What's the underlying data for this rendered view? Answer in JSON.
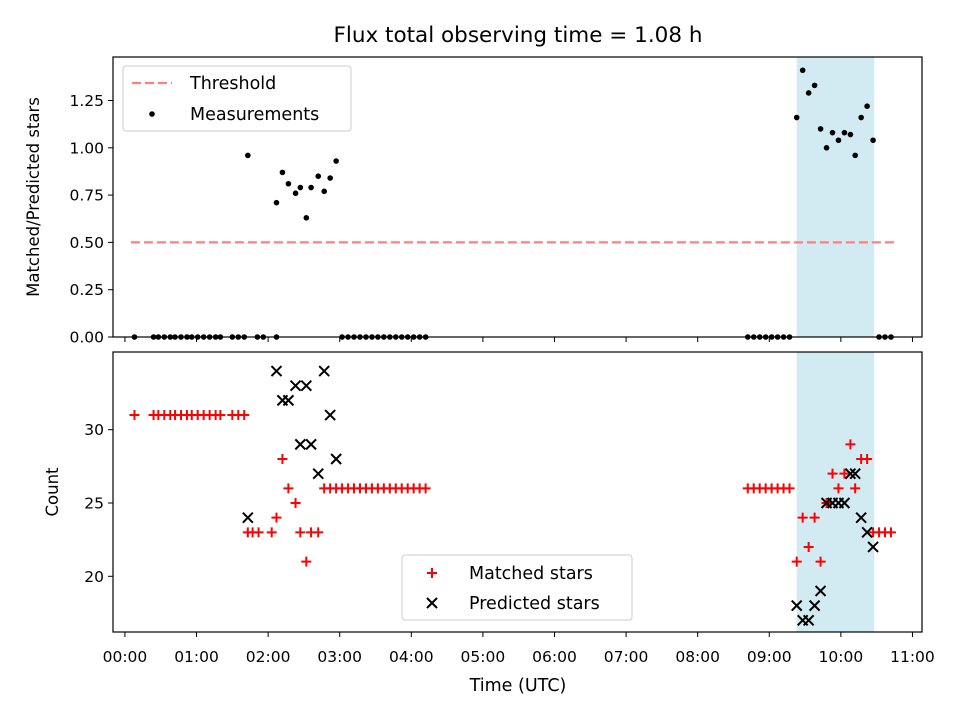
{
  "figure": {
    "title": "Flux total observing time = 1.08 h",
    "xlabel": "Time (UTC)",
    "highlight_span": [
      "09:23",
      "10:28"
    ],
    "highlight_color": "#add8e6"
  },
  "chart_data": [
    {
      "type": "scatter",
      "panel": "top",
      "ylabel": "Matched/Predicted stars",
      "xlim": [
        "23:50",
        "11:08"
      ],
      "ylim": [
        0,
        1.48
      ],
      "yticks": [
        "0.00",
        "0.25",
        "0.50",
        "0.75",
        "1.00",
        "1.25"
      ],
      "legend_location": "upper-left",
      "series": [
        {
          "name": "Threshold",
          "style": "dashed-line",
          "color": "#ff7f7f",
          "points": [
            [
              "00:05",
              0.5
            ],
            [
              "10:45",
              0.5
            ]
          ]
        },
        {
          "name": "Measurements",
          "style": "dot",
          "color": "#000000",
          "points": [
            [
              "00:08",
              0
            ],
            [
              "00:24",
              0
            ],
            [
              "00:28",
              0
            ],
            [
              "00:33",
              0
            ],
            [
              "00:38",
              0
            ],
            [
              "00:42",
              0
            ],
            [
              "00:47",
              0
            ],
            [
              "00:52",
              0
            ],
            [
              "00:56",
              0
            ],
            [
              "01:01",
              0
            ],
            [
              "01:06",
              0
            ],
            [
              "01:11",
              0
            ],
            [
              "01:16",
              0
            ],
            [
              "01:20",
              0
            ],
            [
              "01:30",
              0
            ],
            [
              "01:35",
              0
            ],
            [
              "01:40",
              0
            ],
            [
              "01:51",
              0
            ],
            [
              "01:56",
              0
            ],
            [
              "02:07",
              0
            ],
            [
              "01:43",
              0.96
            ],
            [
              "02:07",
              0.71
            ],
            [
              "02:12",
              0.87
            ],
            [
              "02:17",
              0.81
            ],
            [
              "02:23",
              0.76
            ],
            [
              "02:27",
              0.79
            ],
            [
              "02:32",
              0.63
            ],
            [
              "02:36",
              0.79
            ],
            [
              "02:42",
              0.85
            ],
            [
              "02:47",
              0.77
            ],
            [
              "02:52",
              0.84
            ],
            [
              "02:57",
              0.93
            ],
            [
              "03:02",
              0
            ],
            [
              "03:07",
              0
            ],
            [
              "03:12",
              0
            ],
            [
              "03:17",
              0
            ],
            [
              "03:22",
              0
            ],
            [
              "03:27",
              0
            ],
            [
              "03:32",
              0
            ],
            [
              "03:37",
              0
            ],
            [
              "03:42",
              0
            ],
            [
              "03:47",
              0
            ],
            [
              "03:52",
              0
            ],
            [
              "03:57",
              0
            ],
            [
              "04:02",
              0
            ],
            [
              "04:07",
              0
            ],
            [
              "04:12",
              0
            ],
            [
              "08:42",
              0
            ],
            [
              "08:47",
              0
            ],
            [
              "08:52",
              0
            ],
            [
              "08:57",
              0
            ],
            [
              "09:02",
              0
            ],
            [
              "09:07",
              0
            ],
            [
              "09:12",
              0
            ],
            [
              "09:17",
              0
            ],
            [
              "09:23",
              1.16
            ],
            [
              "09:28",
              1.41
            ],
            [
              "09:33",
              1.29
            ],
            [
              "09:38",
              1.33
            ],
            [
              "09:43",
              1.1
            ],
            [
              "09:48",
              1.0
            ],
            [
              "09:53",
              1.08
            ],
            [
              "09:58",
              1.04
            ],
            [
              "10:03",
              1.08
            ],
            [
              "10:08",
              1.07
            ],
            [
              "10:12",
              0.96
            ],
            [
              "10:17",
              1.16
            ],
            [
              "10:22",
              1.22
            ],
            [
              "10:27",
              1.04
            ],
            [
              "10:32",
              0
            ],
            [
              "10:37",
              0
            ],
            [
              "10:42",
              0
            ]
          ]
        }
      ]
    },
    {
      "type": "scatter",
      "panel": "bottom",
      "ylabel": "Count",
      "xlim": [
        "23:50",
        "11:08"
      ],
      "ylim": [
        16.2,
        35.3
      ],
      "yticks": [
        "20",
        "25",
        "30"
      ],
      "xticks": [
        "00:00",
        "01:00",
        "02:00",
        "03:00",
        "04:00",
        "05:00",
        "06:00",
        "07:00",
        "08:00",
        "09:00",
        "10:00",
        "11:00"
      ],
      "legend_location": "lower-center",
      "series": [
        {
          "name": "Matched stars",
          "marker": "+",
          "color": "#ff0000",
          "points": [
            [
              "00:08",
              31
            ],
            [
              "00:24",
              31
            ],
            [
              "00:28",
              31
            ],
            [
              "00:33",
              31
            ],
            [
              "00:38",
              31
            ],
            [
              "00:42",
              31
            ],
            [
              "00:47",
              31
            ],
            [
              "00:52",
              31
            ],
            [
              "00:56",
              31
            ],
            [
              "01:01",
              31
            ],
            [
              "01:06",
              31
            ],
            [
              "01:11",
              31
            ],
            [
              "01:16",
              31
            ],
            [
              "01:20",
              31
            ],
            [
              "01:30",
              31
            ],
            [
              "01:35",
              31
            ],
            [
              "01:40",
              31
            ],
            [
              "01:43",
              23
            ],
            [
              "01:47",
              23
            ],
            [
              "01:52",
              23
            ],
            [
              "02:03",
              23
            ],
            [
              "02:07",
              24
            ],
            [
              "02:12",
              28
            ],
            [
              "02:17",
              26
            ],
            [
              "02:23",
              25
            ],
            [
              "02:27",
              23
            ],
            [
              "02:32",
              21
            ],
            [
              "02:36",
              23
            ],
            [
              "02:42",
              23
            ],
            [
              "02:47",
              26
            ],
            [
              "02:52",
              26
            ],
            [
              "02:57",
              26
            ],
            [
              "03:02",
              26
            ],
            [
              "03:07",
              26
            ],
            [
              "03:12",
              26
            ],
            [
              "03:17",
              26
            ],
            [
              "03:22",
              26
            ],
            [
              "03:27",
              26
            ],
            [
              "03:32",
              26
            ],
            [
              "03:37",
              26
            ],
            [
              "03:42",
              26
            ],
            [
              "03:47",
              26
            ],
            [
              "03:52",
              26
            ],
            [
              "03:57",
              26
            ],
            [
              "04:02",
              26
            ],
            [
              "04:07",
              26
            ],
            [
              "04:12",
              26
            ],
            [
              "08:42",
              26
            ],
            [
              "08:47",
              26
            ],
            [
              "08:52",
              26
            ],
            [
              "08:57",
              26
            ],
            [
              "09:02",
              26
            ],
            [
              "09:07",
              26
            ],
            [
              "09:12",
              26
            ],
            [
              "09:17",
              26
            ],
            [
              "09:23",
              21
            ],
            [
              "09:28",
              24
            ],
            [
              "09:33",
              22
            ],
            [
              "09:38",
              24
            ],
            [
              "09:43",
              21
            ],
            [
              "09:48",
              25
            ],
            [
              "09:53",
              27
            ],
            [
              "09:58",
              26
            ],
            [
              "10:03",
              27
            ],
            [
              "10:08",
              29
            ],
            [
              "10:12",
              26
            ],
            [
              "10:17",
              28
            ],
            [
              "10:22",
              28
            ],
            [
              "10:27",
              23
            ],
            [
              "10:32",
              23
            ],
            [
              "10:37",
              23
            ],
            [
              "10:42",
              23
            ]
          ]
        },
        {
          "name": "Predicted stars",
          "marker": "x",
          "color": "#000000",
          "points": [
            [
              "01:43",
              24
            ],
            [
              "02:07",
              34
            ],
            [
              "02:12",
              32
            ],
            [
              "02:17",
              32
            ],
            [
              "02:23",
              33
            ],
            [
              "02:27",
              29
            ],
            [
              "02:32",
              33
            ],
            [
              "02:36",
              29
            ],
            [
              "02:42",
              27
            ],
            [
              "02:47",
              34
            ],
            [
              "02:52",
              31
            ],
            [
              "02:57",
              28
            ],
            [
              "09:23",
              18
            ],
            [
              "09:28",
              17
            ],
            [
              "09:33",
              17
            ],
            [
              "09:38",
              18
            ],
            [
              "09:43",
              19
            ],
            [
              "09:48",
              25
            ],
            [
              "09:53",
              25
            ],
            [
              "09:58",
              25
            ],
            [
              "10:03",
              25
            ],
            [
              "10:08",
              27
            ],
            [
              "10:12",
              27
            ],
            [
              "10:17",
              24
            ],
            [
              "10:22",
              23
            ],
            [
              "10:27",
              22
            ]
          ]
        }
      ]
    }
  ]
}
